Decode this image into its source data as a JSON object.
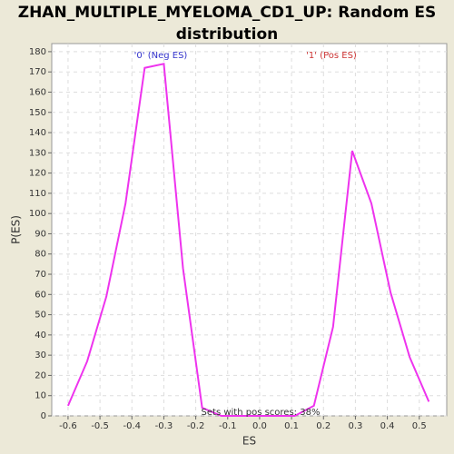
{
  "chart_data": {
    "type": "line",
    "title": "ZHAN_MULTIPLE_MYELOMA_CD1_UP: Random ES distribution",
    "xlabel": "ES",
    "ylabel": "P(ES)",
    "annotations": [
      "'0' (Neg ES)",
      "'1' (Pos ES)",
      "Sets with pos scores: 38%"
    ],
    "annotation_colors": [
      "#3333cc",
      "#cc3333",
      "#333333"
    ],
    "x": [
      -0.6,
      -0.54,
      -0.48,
      -0.42,
      -0.36,
      -0.3,
      -0.24,
      -0.18,
      -0.12,
      -0.06,
      0.0,
      0.05,
      0.11,
      0.17,
      0.23,
      0.29,
      0.35,
      0.41,
      0.47,
      0.53
    ],
    "series": [
      {
        "name": "P(ES)",
        "color": "#ee33ee",
        "values": [
          5,
          27,
          59,
          105,
          172,
          174,
          73,
          4,
          0,
          0,
          0,
          0,
          0,
          5,
          44,
          131,
          105,
          61,
          29,
          7
        ]
      }
    ],
    "xlim": [
      -0.651,
      0.586
    ],
    "xticks": [
      -0.6,
      -0.5,
      -0.4,
      -0.3,
      -0.2,
      -0.1,
      {
        "value": 0,
        "label": "0.0"
      },
      0.1,
      0.2,
      0.3,
      0.4,
      0.5
    ],
    "ylim": [
      0,
      184
    ],
    "yticks": [
      0,
      10,
      20,
      30,
      40,
      50,
      60,
      70,
      80,
      90,
      100,
      110,
      120,
      130,
      140,
      150,
      160,
      170,
      180
    ],
    "grid": true
  }
}
